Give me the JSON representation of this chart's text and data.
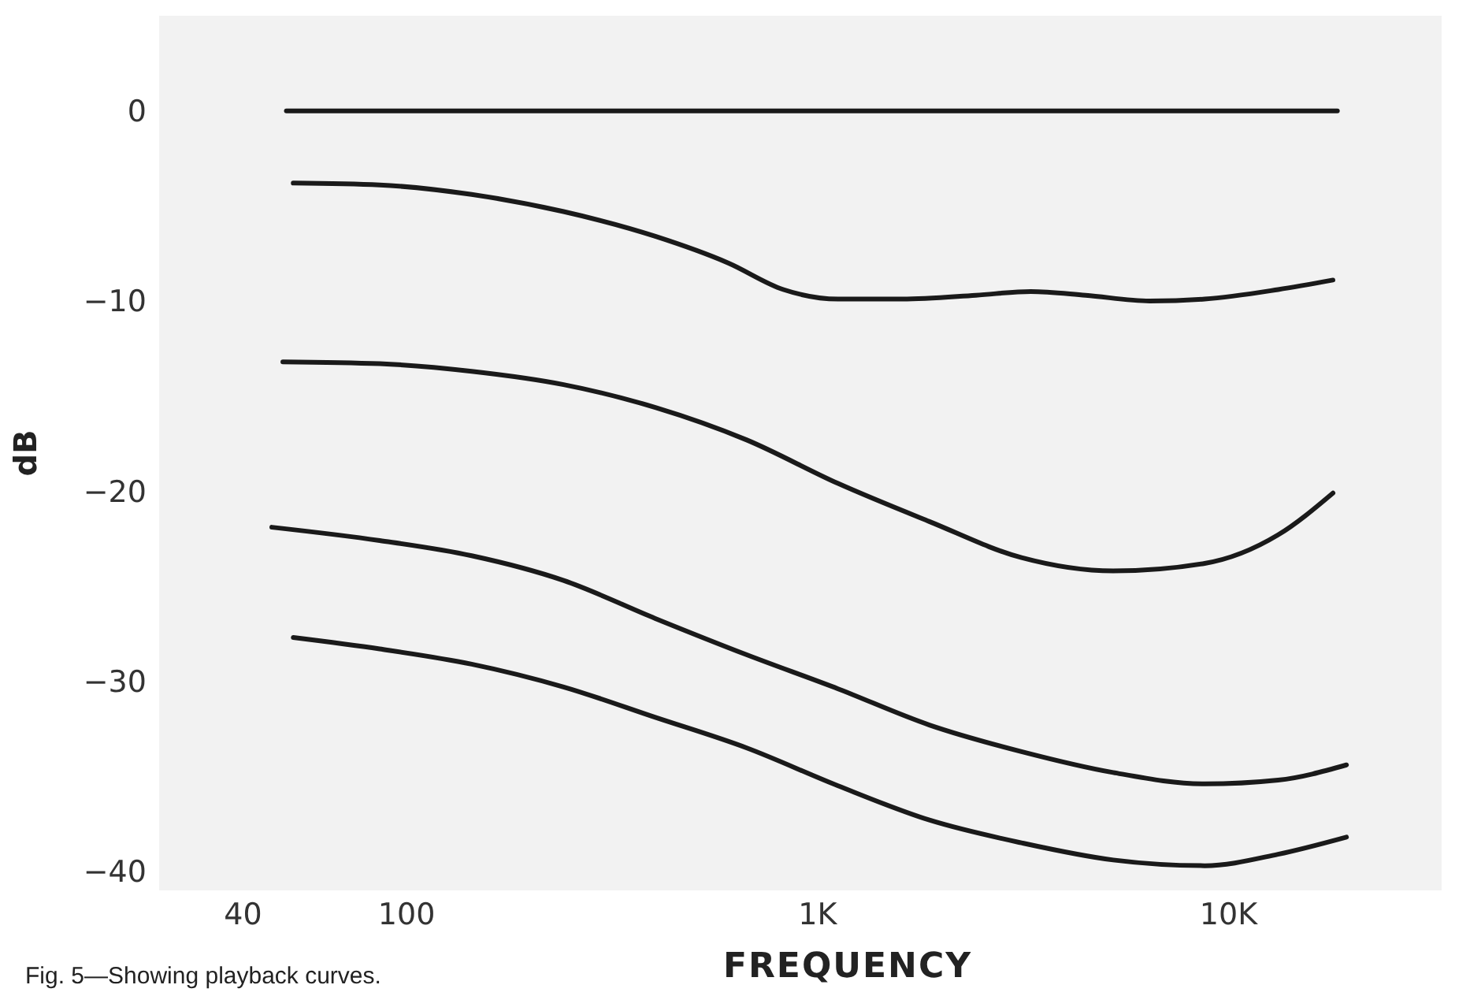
{
  "chart_data": {
    "type": "line",
    "xlabel": "FREQUENCY",
    "ylabel": "dB",
    "annotations": [
      "Fig. 5—Showing playback curves."
    ],
    "log": "x",
    "xlim": [
      25,
      33000
    ],
    "xticks": [
      40,
      100,
      {
        "value": 1000,
        "label": "1K"
      },
      {
        "value": 10000,
        "label": "10K"
      }
    ],
    "ylim": [
      -41,
      5
    ],
    "yticks": [
      0,
      {
        "value": -10,
        "label": "−10"
      },
      {
        "value": -20,
        "label": "−20"
      },
      {
        "value": -30,
        "label": "−30"
      },
      {
        "value": -40,
        "label": "−40"
      }
    ],
    "line_style": "solid",
    "series": [
      {
        "color": "#1a1a1a",
        "x": [
          51,
          18400
        ],
        "values": [
          0,
          0
        ]
      },
      {
        "color": "#1a1a1a",
        "x": [
          53,
          86,
          144,
          241,
          403,
          606,
          826,
          1122,
          1606,
          2427,
          3302,
          4490,
          6430,
          8750,
          13200,
          17950
        ],
        "values": [
          -3.8,
          -3.9,
          -4.4,
          -5.3,
          -6.6,
          -8.0,
          -9.4,
          -9.9,
          -9.9,
          -9.7,
          -9.5,
          -9.7,
          -10.0,
          -9.9,
          -9.4,
          -8.9
        ]
      },
      {
        "color": "#1a1a1a",
        "x": [
          50,
          86,
          144,
          241,
          403,
          671,
          1122,
          1871,
          3135,
          5240,
          8750,
          13200,
          17950
        ],
        "values": [
          -13.2,
          -13.3,
          -13.7,
          -14.4,
          -15.6,
          -17.3,
          -19.6,
          -21.6,
          -23.5,
          -24.2,
          -23.8,
          -22.3,
          -20.1
        ]
      },
      {
        "color": "#1a1a1a",
        "x": [
          47,
          86,
          144,
          241,
          403,
          671,
          1122,
          1871,
          3135,
          5240,
          8750,
          13200,
          19360
        ],
        "values": [
          -21.9,
          -22.6,
          -23.4,
          -24.7,
          -26.7,
          -28.6,
          -30.4,
          -32.3,
          -33.7,
          -34.8,
          -35.4,
          -35.2,
          -34.4
        ]
      },
      {
        "color": "#1a1a1a",
        "x": [
          53,
          86,
          144,
          241,
          403,
          671,
          1122,
          1871,
          3135,
          5240,
          8750,
          13200,
          19360
        ],
        "values": [
          -27.7,
          -28.3,
          -29.1,
          -30.3,
          -31.9,
          -33.5,
          -35.5,
          -37.3,
          -38.5,
          -39.4,
          -39.7,
          -39.1,
          -38.2
        ]
      }
    ]
  }
}
